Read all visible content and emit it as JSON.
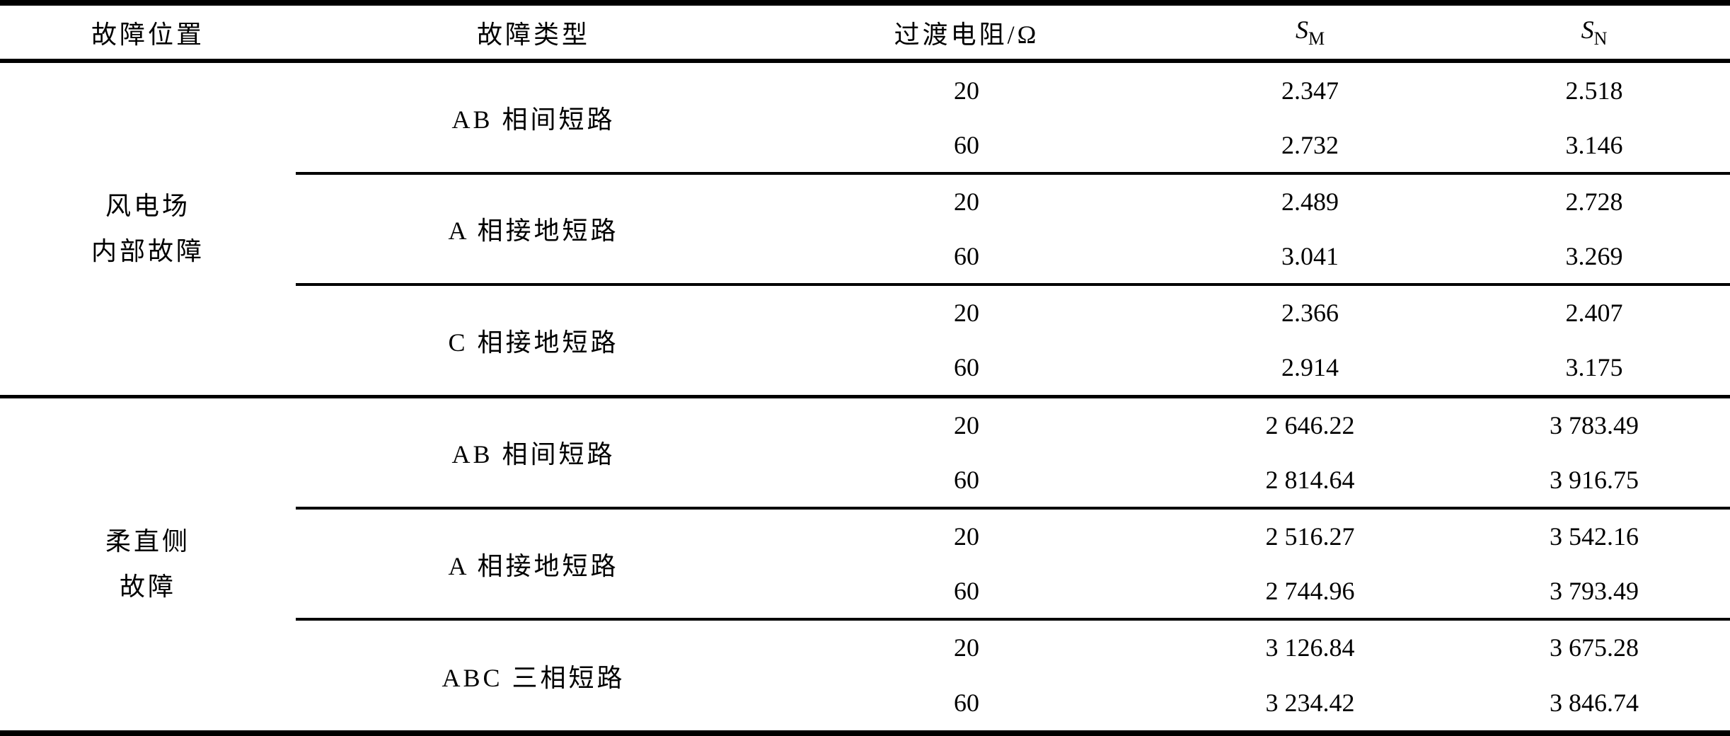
{
  "table": {
    "headers": {
      "location": "故障位置",
      "type": "故障类型",
      "resistance": "过渡电阻/Ω",
      "sm": {
        "base": "S",
        "sub": "M"
      },
      "sn": {
        "base": "S",
        "sub": "N"
      }
    },
    "groups": [
      {
        "location_lines": [
          "风电场",
          "内部故障"
        ],
        "faults": [
          {
            "type": "AB 相间短路",
            "rows": [
              {
                "r": "20",
                "sm": "2.347",
                "sn": "2.518"
              },
              {
                "r": "60",
                "sm": "2.732",
                "sn": "3.146"
              }
            ]
          },
          {
            "type": "A 相接地短路",
            "rows": [
              {
                "r": "20",
                "sm": "2.489",
                "sn": "2.728"
              },
              {
                "r": "60",
                "sm": "3.041",
                "sn": "3.269"
              }
            ]
          },
          {
            "type": "C 相接地短路",
            "rows": [
              {
                "r": "20",
                "sm": "2.366",
                "sn": "2.407"
              },
              {
                "r": "60",
                "sm": "2.914",
                "sn": "3.175"
              }
            ]
          }
        ]
      },
      {
        "location_lines": [
          "柔直侧",
          "故障"
        ],
        "faults": [
          {
            "type": "AB 相间短路",
            "rows": [
              {
                "r": "20",
                "sm": "2 646.22",
                "sn": "3 783.49"
              },
              {
                "r": "60",
                "sm": "2 814.64",
                "sn": "3 916.75"
              }
            ]
          },
          {
            "type": "A 相接地短路",
            "rows": [
              {
                "r": "20",
                "sm": "2 516.27",
                "sn": "3 542.16"
              },
              {
                "r": "60",
                "sm": "2 744.96",
                "sn": "3 793.49"
              }
            ]
          },
          {
            "type": "ABC 三相短路",
            "rows": [
              {
                "r": "20",
                "sm": "3 126.84",
                "sn": "3 675.28"
              },
              {
                "r": "60",
                "sm": "3 234.42",
                "sn": "3 846.74"
              }
            ]
          }
        ]
      }
    ]
  }
}
